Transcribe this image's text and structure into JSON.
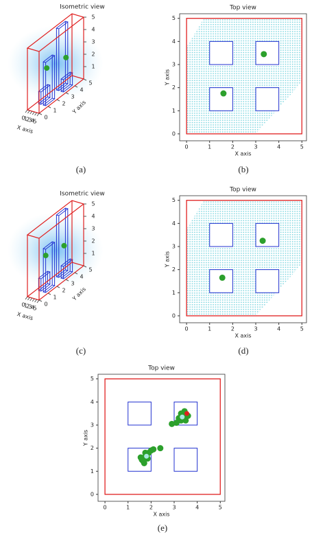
{
  "chart_data": [
    {
      "type": "isometric",
      "title": "Isometric view",
      "caption": "(a)",
      "x_label": "X axis",
      "y_label": "Y axis",
      "xlim": [
        0,
        5
      ],
      "ylim": [
        0,
        5
      ],
      "zlim": [
        0,
        5
      ],
      "xticks": [
        0,
        1,
        2,
        3,
        4,
        5
      ],
      "yticks": [
        0,
        1,
        2,
        3,
        4,
        5
      ],
      "zticks": [
        1,
        2,
        3,
        4,
        5
      ],
      "frame_color": "#e02020",
      "tower_color": "#2030d0",
      "towers": [
        [
          1,
          1,
          2,
          2,
          1
        ],
        [
          3,
          1,
          4,
          2,
          3.5
        ],
        [
          1,
          3,
          2,
          4,
          5
        ],
        [
          3,
          3,
          4,
          4,
          1
        ]
      ],
      "points": {
        "color": "#2ca02c",
        "x": [
          1.6,
          3.35
        ],
        "y": [
          1.75,
          3.45
        ],
        "z": [
          2.5,
          2.5
        ]
      }
    },
    {
      "type": "top",
      "title": "Top view",
      "caption": "(b)",
      "x_label": "X axis",
      "y_label": "Y axis",
      "xlim": [
        -0.3,
        5.2
      ],
      "ylim": [
        -0.3,
        5.2
      ],
      "xticks": [
        0,
        1,
        2,
        3,
        4,
        5
      ],
      "yticks": [
        0,
        1,
        2,
        3,
        4,
        5
      ],
      "boundary": [
        0,
        0,
        5,
        5
      ],
      "frame_color": "#e02020",
      "obstacle_color": "#2030d0",
      "obstacles": [
        [
          1,
          1,
          2,
          2
        ],
        [
          3,
          1,
          4,
          2
        ],
        [
          1,
          3,
          2,
          4
        ],
        [
          3,
          3,
          4,
          4
        ]
      ],
      "series": [
        {
          "color": "#2ca02c",
          "x": [
            1.6,
            3.35
          ],
          "y": [
            1.75,
            3.45
          ]
        }
      ]
    },
    {
      "type": "isometric",
      "title": "Isometric view",
      "caption": "(c)",
      "x_label": "X axis",
      "y_label": "Y axis",
      "xlim": [
        0,
        5
      ],
      "ylim": [
        0,
        5
      ],
      "zlim": [
        0,
        5
      ],
      "xticks": [
        0,
        1,
        2,
        3,
        4,
        5
      ],
      "yticks": [
        0,
        1,
        2,
        3,
        4,
        5
      ],
      "zticks": [
        1,
        2,
        3,
        4,
        5
      ],
      "frame_color": "#e02020",
      "tower_color": "#2030d0",
      "towers": [
        [
          1,
          1,
          2,
          2,
          1
        ],
        [
          3,
          1,
          4,
          2,
          3.5
        ],
        [
          1,
          3,
          2,
          4,
          5
        ],
        [
          3,
          3,
          4,
          4,
          1
        ]
      ],
      "points": {
        "color": "#2ca02c",
        "x": [
          1.55,
          3.3
        ],
        "y": [
          1.65,
          3.25
        ],
        "z": [
          2.5,
          2.5
        ]
      }
    },
    {
      "type": "top",
      "title": "Top view",
      "caption": "(d)",
      "x_label": "X axis",
      "y_label": "Y axis",
      "xlim": [
        -0.3,
        5.2
      ],
      "ylim": [
        -0.3,
        5.2
      ],
      "xticks": [
        0,
        1,
        2,
        3,
        4,
        5
      ],
      "yticks": [
        0,
        1,
        2,
        3,
        4,
        5
      ],
      "boundary": [
        0,
        0,
        5,
        5
      ],
      "frame_color": "#e02020",
      "obstacle_color": "#2030d0",
      "obstacles": [
        [
          1,
          1,
          2,
          2
        ],
        [
          3,
          1,
          4,
          2
        ],
        [
          1,
          3,
          2,
          4
        ],
        [
          3,
          3,
          4,
          4
        ]
      ],
      "series": [
        {
          "color": "#2ca02c",
          "x": [
            1.55,
            3.3
          ],
          "y": [
            1.65,
            3.25
          ]
        }
      ]
    },
    {
      "type": "top",
      "title": "Top view",
      "caption": "(e)",
      "x_label": "X axis",
      "y_label": "Y axis",
      "xlim": [
        -0.3,
        5.2
      ],
      "ylim": [
        -0.3,
        5.2
      ],
      "xticks": [
        0,
        1,
        2,
        3,
        4,
        5
      ],
      "yticks": [
        0,
        1,
        2,
        3,
        4,
        5
      ],
      "boundary": [
        0,
        0,
        5,
        5
      ],
      "frame_color": "#e02020",
      "obstacle_color": "#2030d0",
      "obstacles": [
        [
          1,
          1,
          2,
          2
        ],
        [
          3,
          1,
          4,
          2
        ],
        [
          1,
          3,
          2,
          4
        ],
        [
          3,
          3,
          4,
          4
        ]
      ],
      "series": [
        {
          "color": "#2ca02c",
          "x": [
            1.6,
            1.7,
            1.8,
            1.9,
            2.0,
            1.65,
            1.75,
            1.85,
            2.1,
            2.4,
            1.7,
            1.55,
            3.1,
            3.3,
            3.4,
            3.5,
            3.3,
            3.2,
            3.6,
            3.45,
            2.9,
            3.5
          ],
          "y": [
            1.5,
            1.6,
            1.7,
            1.8,
            1.9,
            1.45,
            1.8,
            1.55,
            1.95,
            2.0,
            1.35,
            1.6,
            3.1,
            3.2,
            3.3,
            3.5,
            3.5,
            3.3,
            3.4,
            3.6,
            3.05,
            3.2
          ]
        },
        {
          "color": "#e02020",
          "x": [
            3.55
          ],
          "y": [
            3.5
          ]
        },
        {
          "color": "#a8e8e0",
          "x": [
            1.8,
            3.35
          ],
          "y": [
            1.65,
            3.35
          ]
        }
      ]
    }
  ]
}
